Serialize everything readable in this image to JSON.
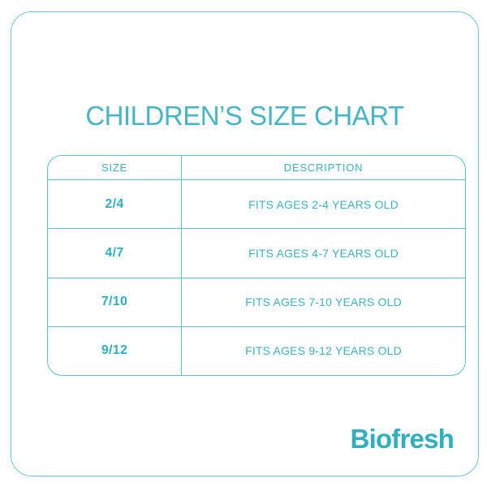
{
  "page": {
    "title": "CHILDREN’S SIZE CHART",
    "brand": "Biofresh"
  },
  "table": {
    "headers": [
      "SIZE",
      "DESCRIPTION"
    ],
    "rows": [
      {
        "size": "2/4",
        "description": "FITS AGES 2-4 YEARS OLD"
      },
      {
        "size": "4/7",
        "description": "FITS AGES 4-7 YEARS OLD"
      },
      {
        "size": "7/10",
        "description": "FITS AGES 7-10 YEARS OLD"
      },
      {
        "size": "9/12",
        "description": "FITS AGES 9-12 YEARS OLD"
      }
    ]
  },
  "chart_data": {
    "type": "table",
    "title": "CHILDREN’S SIZE CHART",
    "columns": [
      "SIZE",
      "DESCRIPTION"
    ],
    "rows": [
      [
        "2/4",
        "FITS AGES 2-4 YEARS OLD"
      ],
      [
        "4/7",
        "FITS AGES 4-7 YEARS OLD"
      ],
      [
        "7/10",
        "FITS AGES 7-10 YEARS OLD"
      ],
      [
        "9/12",
        "FITS AGES 9-12 YEARS OLD"
      ]
    ]
  },
  "colors": {
    "accent_text": "#3bb3c4",
    "title_text": "#45b6c7",
    "bold_text": "#2fb0c1",
    "table_border": "#5cc3d1",
    "frame_border": "#6ac7d4",
    "background": "#ffffff"
  }
}
